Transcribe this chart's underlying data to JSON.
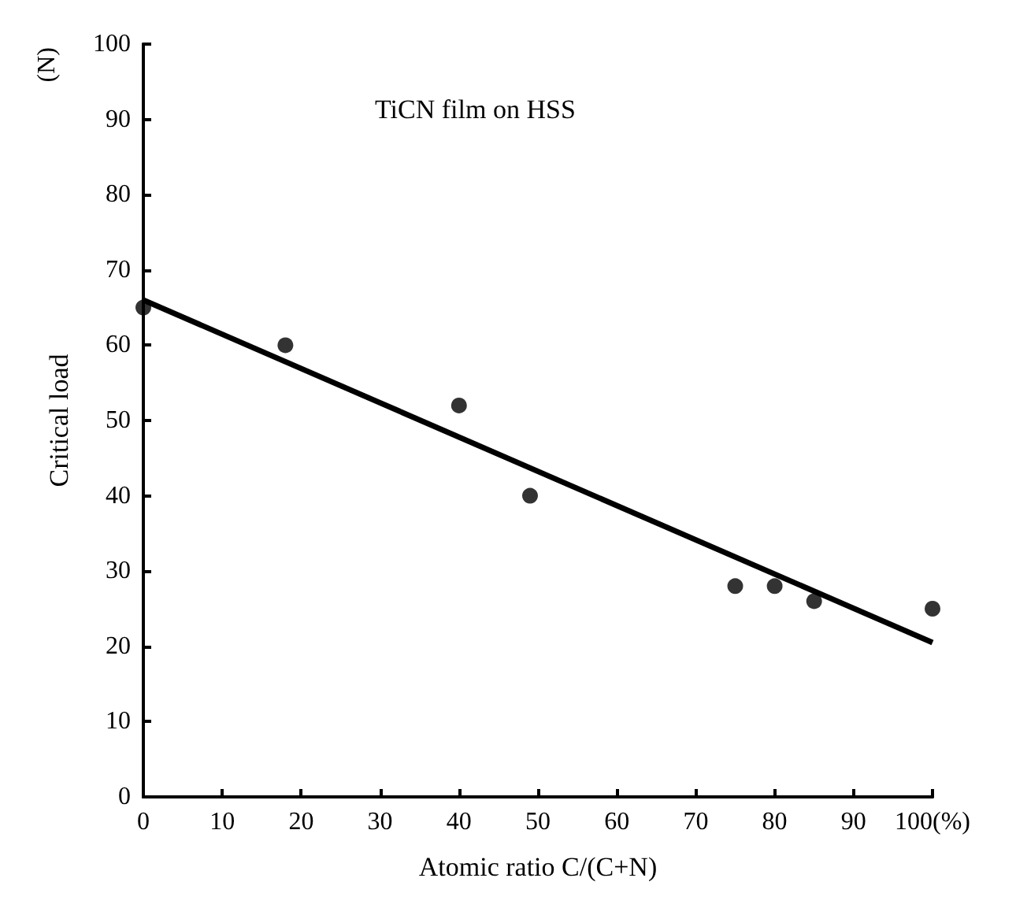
{
  "chart_data": {
    "type": "scatter",
    "title": "TiCN film on HSS",
    "xlabel": "Atomic ratio C/(C+N)",
    "ylabel": "Critical load",
    "annotations": [
      "(N)"
    ],
    "xlim": [
      0,
      100
    ],
    "xticks": [
      0,
      10,
      20,
      30,
      40,
      50,
      60,
      70,
      80,
      90,
      {
        "value": 100,
        "label": "100(%)"
      }
    ],
    "ylim": [
      0,
      100
    ],
    "yticks": [
      0,
      10,
      20,
      30,
      40,
      50,
      60,
      70,
      80,
      90,
      100
    ],
    "grid": false,
    "marker": "circle",
    "series": [
      {
        "color": "#000000",
        "x": [
          0,
          18,
          40,
          49,
          75,
          80,
          85,
          100
        ],
        "values": [
          65,
          60,
          52,
          40,
          28,
          28,
          26,
          25
        ]
      },
      {
        "type": "line",
        "color": "#000000",
        "marker": "none",
        "line_style": "solid",
        "x": [
          0,
          100
        ],
        "values": [
          66,
          20.5
        ]
      }
    ]
  }
}
